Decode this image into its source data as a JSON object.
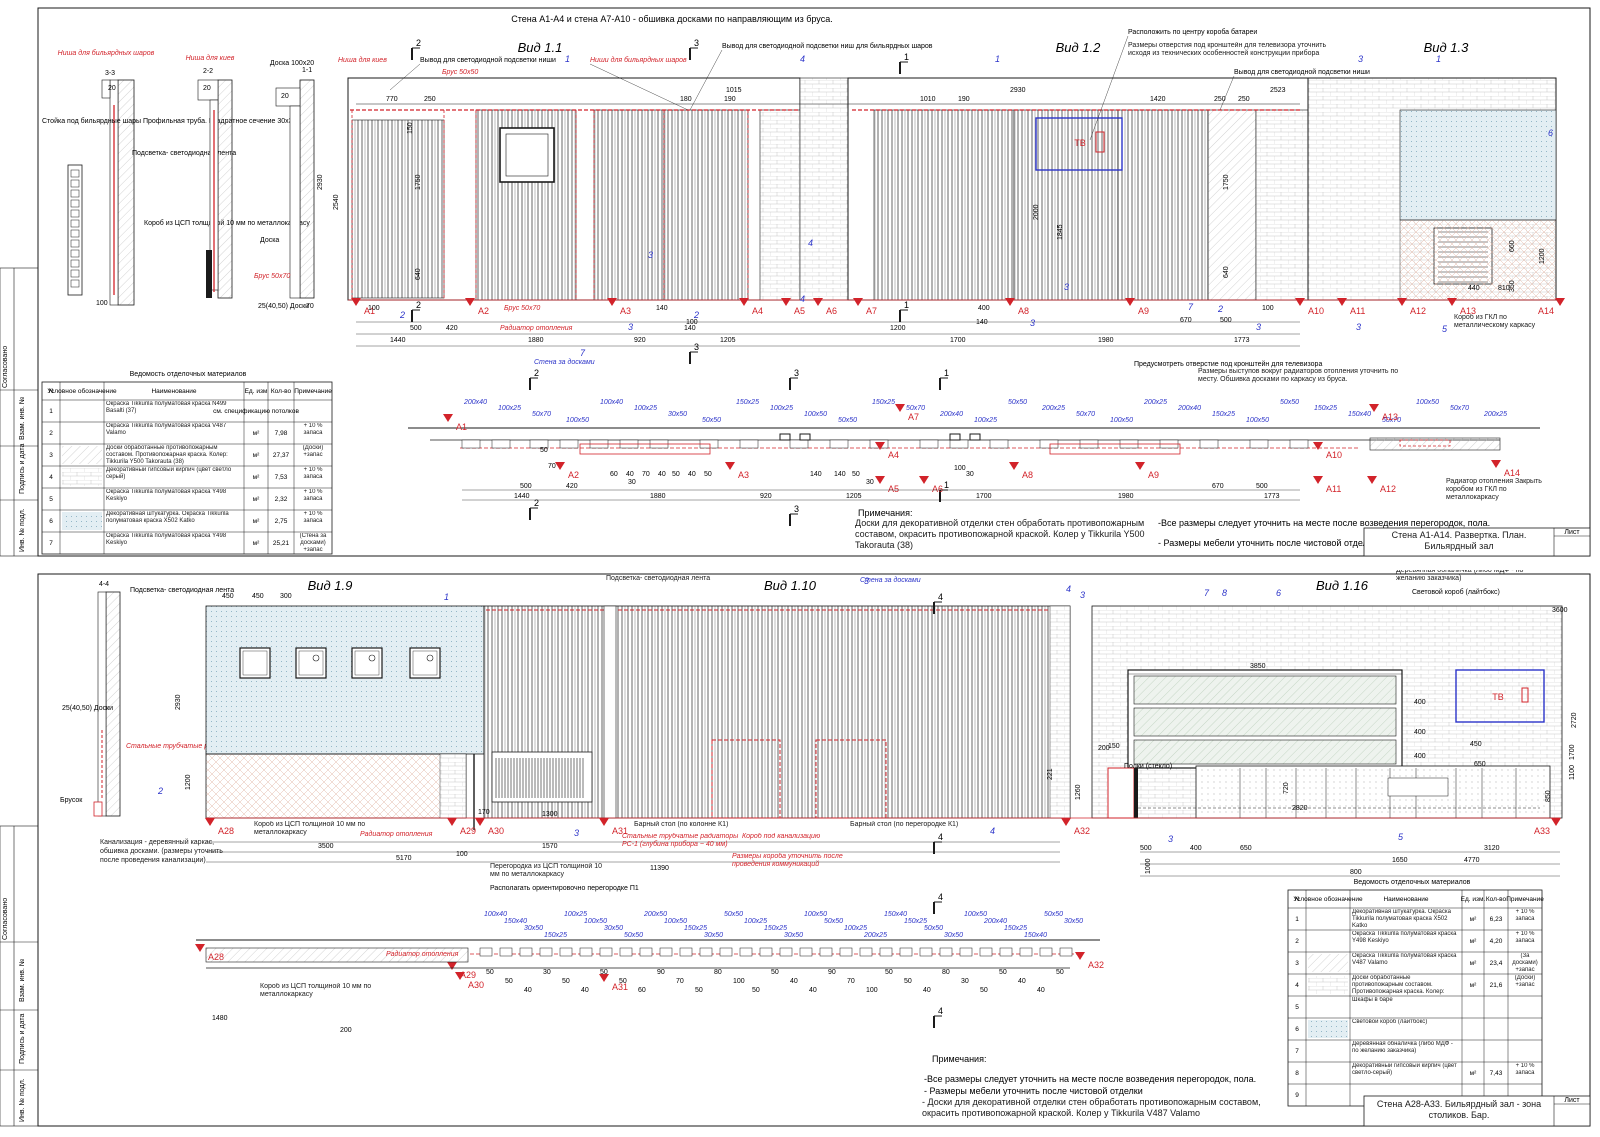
{
  "sheet1": {
    "header": "Стена А1-А4 и стена А7-А10 - обшивка досками по направляющим из бруса.",
    "views": [
      "Вид 1.1",
      "Вид 1.2",
      "Вид 1.3"
    ],
    "sections": [
      "3-3",
      "2-2",
      "1-1"
    ],
    "section_labels": {
      "niche_balls": "Ниша для бильярдных шаров",
      "niche_cues": "Ниша для киев",
      "board": "Доска 100х20",
      "stand": "Стойка под бильярдные шары Профильная труба. Квадратное сечение 30х30",
      "light": "Подсветка- светодиодная лента",
      "box": "Короб из ЦСП толщиной 10 мм по металлокаркасу",
      "doska": "Доска",
      "brus": "Брус 50х70",
      "boards": "25(40,50) Доски"
    },
    "callouts": [
      "Ниша для киев",
      "Вывод для светодиодной подсветки ниши",
      "Брус 50х50",
      "Ниши для бильярдных шаров",
      "Вывод для светодиодной подсветки ниш для бильярдных шаров",
      "Расположить по центру короба батареи",
      "Размеры отверстия под кронштейн для телевизора уточнить исходя из технических особенностей конструкции прибора",
      "Вывод для светодиодной подсветки ниши",
      "Брус 50х70",
      "Радиатор отопления",
      "Стена за досками",
      "Короб из ГКЛ по металлическому каркасу",
      "Предусмотреть отверстие под кронштейн для телевизора",
      "Размеры выступов вокруг радиаторов отопления уточнить по месту. Обшивка досками по каркасу из бруса.",
      "Радиатор отопления Закрыть коробом из ГКЛ по металлокаркасу"
    ],
    "tv": "ТВ",
    "axes_elev": [
      "А1",
      "А2",
      "А3",
      "А4",
      "А5",
      "А6",
      "А7",
      "А8",
      "А9",
      "А10",
      "А11",
      "А12",
      "А13",
      "А14"
    ],
    "dims_top": [
      "770",
      "250",
      "1015",
      "190",
      "1010",
      "190",
      "2930",
      "1420",
      "2523",
      "250",
      "250",
      "180"
    ],
    "dims_bottom": [
      "100",
      "500",
      "420",
      "1440",
      "1880",
      "920",
      "140",
      "100",
      "140",
      "1205",
      "1200",
      "1700",
      "400",
      "140",
      "1980",
      "670",
      "500",
      "100",
      "1773"
    ],
    "dims_side": [
      "2540",
      "2930",
      "1750",
      "1750",
      "2000",
      "1845",
      "660",
      "1200",
      "350",
      "640",
      "640",
      "440",
      "810",
      "150"
    ],
    "materials_title": "Ведомость отделочных материалов",
    "materials_head": [
      "N",
      "Условное обозначение",
      "Наименование",
      "Ед. изм",
      "Кол-во",
      "Примечание"
    ],
    "materials": [
      {
        "n": "1",
        "name": "Окраска Tikkurila полуматовая краска N499 Basalti (37)",
        "unit": "см. спецификацию потолков",
        "qty": "",
        "note": ""
      },
      {
        "n": "2",
        "name": "Окраска Tikkurila полуматовая краска V487 Valamo",
        "unit": "м²",
        "qty": "7,98",
        "note": "+ 10 % запаса"
      },
      {
        "n": "3",
        "name": "Доски обработанные противопожарным составом. Противопожарная краска. Колер: Tikkurila Y500 Takorauta (38)",
        "unit": "м²",
        "qty": "27,37",
        "note": "(Доски) +запас"
      },
      {
        "n": "4",
        "name": "Декоративный гипсовый кирпич (цвет светло серый)",
        "unit": "м²",
        "qty": "7,53",
        "note": "+ 10 % запаса"
      },
      {
        "n": "5",
        "name": "Окраска Tikkurila полуматовая краска Y498 Keskiyo",
        "unit": "м²",
        "qty": "2,32",
        "note": "+ 10 % запаса"
      },
      {
        "n": "6",
        "name": "Декоративная штукатурка. Окраска Tikkurila полуматовая краска X502 Katko",
        "unit": "м²",
        "qty": "2,75",
        "note": "+ 10 % запаса"
      },
      {
        "n": "7",
        "name": "Окраска Tikkurila полуматовая краска Y498 Keskiyo",
        "unit": "м²",
        "qty": "25,21",
        "note": "(Стена за досками) +запас"
      }
    ],
    "notes_title": "Примечания:",
    "notes_left": "Доски для декоративной отделки стен обработать противопожарным составом, окрасить противопожарной краской. Колер у Tikkurila Y500 Takorauta (38)",
    "notes_right": [
      "-Все размеры следует уточнить на месте после возведения перегородок, пола.",
      "- Размеры мебели уточнить после чистовой отделки"
    ],
    "stamp_title": "Стена А1-А14. Развертка. План. Бильярдный зал",
    "stamp_sheet": "Лист",
    "side_stamp": [
      "Согласовано",
      "Взам. инв. №",
      "Подпись и дата",
      "Инв. № подл."
    ]
  },
  "sheet2": {
    "views": [
      "Вид 1.9",
      "Вид 1.10",
      "Вид 1.16"
    ],
    "section": "4-4",
    "section_labels": {
      "light": "Подсветка- светодиодная лента",
      "boards": "25(40,50) Доски",
      "radiators": "Стальные трубчатые радиаторы РС-1",
      "bar": "Брусок",
      "sewer": "Канализация - деревянный каркас, обшивка досками. (размеры уточнить после проведения канализации)"
    },
    "callouts": [
      "Подсветка- светодиодная лента",
      "Стена за досками",
      "Деревянная обналичка (либо МДФ - по желанию заказчика)",
      "Световой короб (лайтбокс)",
      "Короб из ЦСП толщиной 10 мм по металлокаркасу",
      "Радиатор отопления",
      "Перегородка из ЦСП толщиной 10 мм по металлокаркасу",
      "Располагать ориентировочно перегородке П1",
      "Барный стол (по колонне К1)",
      "Стальные трубчатые радиаторы РС-1 (глубина прибора ~ 40 мм)",
      "Короб под канализацию",
      "Размеры короба уточнить после проведения коммуникаций",
      "Барный стол (по перегородке К1)",
      "Полки (стекло)",
      "Короб из ЦСП толщиной 10 мм по металлокаркасу"
    ],
    "tv": "ТВ",
    "axes": [
      "А28",
      "А29",
      "А30",
      "А31",
      "А32",
      "А33"
    ],
    "dims": [
      "450",
      "450",
      "300",
      "2930",
      "1200",
      "1300",
      "170",
      "3500",
      "1570",
      "5170",
      "11390",
      "100",
      "3850",
      "400",
      "400",
      "400",
      "2720",
      "450",
      "650",
      "1100",
      "1700",
      "850",
      "720",
      "2820",
      "500",
      "400",
      "650",
      "3120",
      "1650",
      "4770",
      "800",
      "1000",
      "1260",
      "221",
      "200",
      "150",
      "3600",
      "1480",
      "200"
    ],
    "materials_title": "Ведомость отделочных материалов",
    "materials_head": [
      "N",
      "Условное обозначение",
      "Наименование",
      "Ед. изм.",
      "Кол-во",
      "Примечание"
    ],
    "materials": [
      {
        "n": "1",
        "name": "Декоративная штукатурка. Окраска Tikkurila полуматовая краска X502 Katko",
        "unit": "м²",
        "qty": "6,23",
        "note": "+ 10 % запаса"
      },
      {
        "n": "2",
        "name": "Окраска Tikkurila полуматовая краска Y498 Keskiyo",
        "unit": "м²",
        "qty": "4,20",
        "note": "+ 10 % запаса"
      },
      {
        "n": "3",
        "name": "Окраска Tikkurila полуматовая краска V487 Valamo",
        "unit": "м²",
        "qty": "23,4",
        "note": "(За досками) +запас"
      },
      {
        "n": "4",
        "name": "Доски обработанные противопожарным составом. Противопожарная краска. Колер: Tikkurila V487 Valamo",
        "unit": "м²",
        "qty": "21,6",
        "note": "(Доски) +запас"
      },
      {
        "n": "5",
        "name": "Шкафы в баре",
        "unit": "",
        "qty": "",
        "note": ""
      },
      {
        "n": "6",
        "name": "Световой короб (лайтбокс)",
        "unit": "",
        "qty": "",
        "note": ""
      },
      {
        "n": "7",
        "name": "Деревянная обналичка (либо МДФ - по желанию заказчика)",
        "unit": "",
        "qty": "",
        "note": ""
      },
      {
        "n": "8",
        "name": "Декоративный гипсовый кирпич (цвет светло-серый)",
        "unit": "м²",
        "qty": "7,43",
        "note": "+ 10 % запаса"
      },
      {
        "n": "9",
        "name": "",
        "unit": "",
        "qty": "",
        "note": ""
      }
    ],
    "notes_title": "Примечания:",
    "notes": [
      "-Все размеры следует уточнить на месте после возведения перегородок, пола.",
      "- Размеры мебели уточнить после чистовой отделки",
      "- Доски для декоративной отделки стен обработать противопожарным составом, окрасить противопожарной краской. Колер у Tikkurila V487 Valamo"
    ],
    "stamp_title": "Стена А28-А33. Бильярдный зал - зона столиков. Бар.",
    "stamp_sheet": "Лист",
    "side_stamp": [
      "Согласовано",
      "Взам. инв. №",
      "Подпись и дата",
      "Инв. № подл."
    ]
  },
  "colors": {
    "red": "#d2232a",
    "blue": "#2b33c9",
    "line": "#1a1a1a",
    "hatch": "#9a9a9a"
  }
}
